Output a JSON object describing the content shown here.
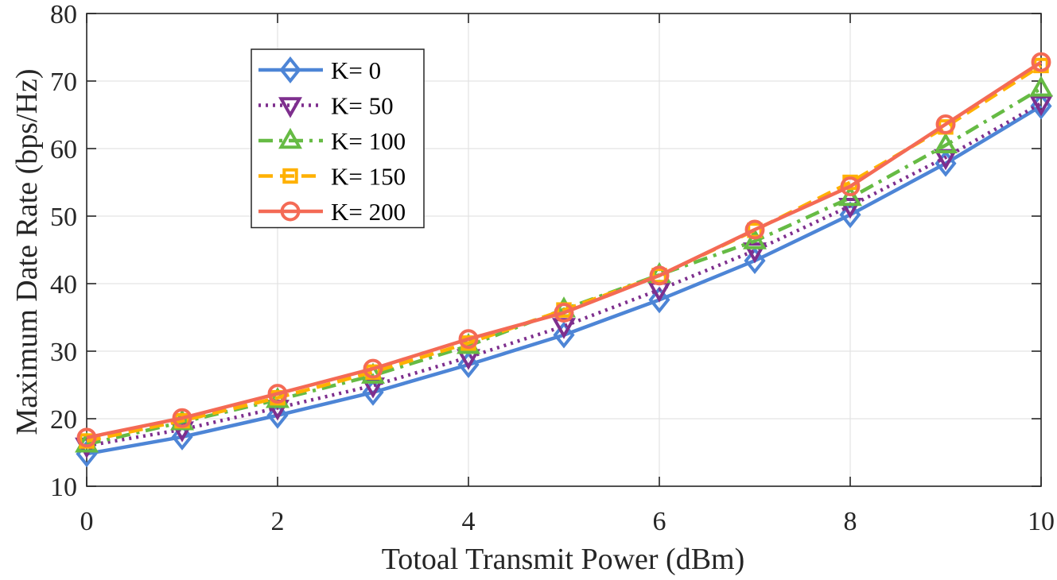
{
  "chart_data": {
    "type": "line",
    "title": "",
    "xlabel": "Totoal Transmit Power (dBm)",
    "ylabel": "Maximum Date Rate (bps/Hz)",
    "xlim": [
      0,
      10
    ],
    "ylim": [
      10,
      80
    ],
    "xticks": [
      0,
      2,
      4,
      6,
      8,
      10
    ],
    "yticks": [
      10,
      20,
      30,
      40,
      50,
      60,
      70,
      80
    ],
    "grid": true,
    "legend_position": "top-left",
    "x": [
      0,
      1,
      2,
      3,
      4,
      5,
      6,
      7,
      8,
      9,
      10
    ],
    "series": [
      {
        "name": "K= 0",
        "marker": "diamond",
        "dash": "solid",
        "color": "#4D85D6",
        "values": [
          14.8,
          17.3,
          20.5,
          23.9,
          28.0,
          32.4,
          37.6,
          43.4,
          50.2,
          57.8,
          66.3
        ]
      },
      {
        "name": "K= 50",
        "marker": "triangle-down",
        "dash": "dotted",
        "color": "#7E2F8E",
        "values": [
          16.0,
          18.4,
          21.6,
          24.9,
          29.1,
          33.7,
          39.1,
          44.9,
          51.5,
          58.7,
          66.7
        ]
      },
      {
        "name": "K= 100",
        "marker": "triangle-up",
        "dash": "dashdot",
        "color": "#66BB44",
        "values": [
          16.2,
          19.5,
          22.8,
          26.4,
          30.8,
          36.2,
          41.3,
          46.3,
          52.7,
          60.5,
          68.9
        ]
      },
      {
        "name": "K= 150",
        "marker": "square",
        "dash": "dashed",
        "color": "#FFB100",
        "values": [
          16.7,
          19.7,
          23.1,
          26.9,
          31.2,
          36.1,
          41.2,
          47.9,
          55.0,
          63.2,
          72.3
        ]
      },
      {
        "name": "K= 200",
        "marker": "circle",
        "dash": "solid",
        "color": "#F46A55",
        "values": [
          17.2,
          20.1,
          23.7,
          27.4,
          31.8,
          35.7,
          41.2,
          48.0,
          54.4,
          63.6,
          72.8
        ]
      }
    ]
  }
}
